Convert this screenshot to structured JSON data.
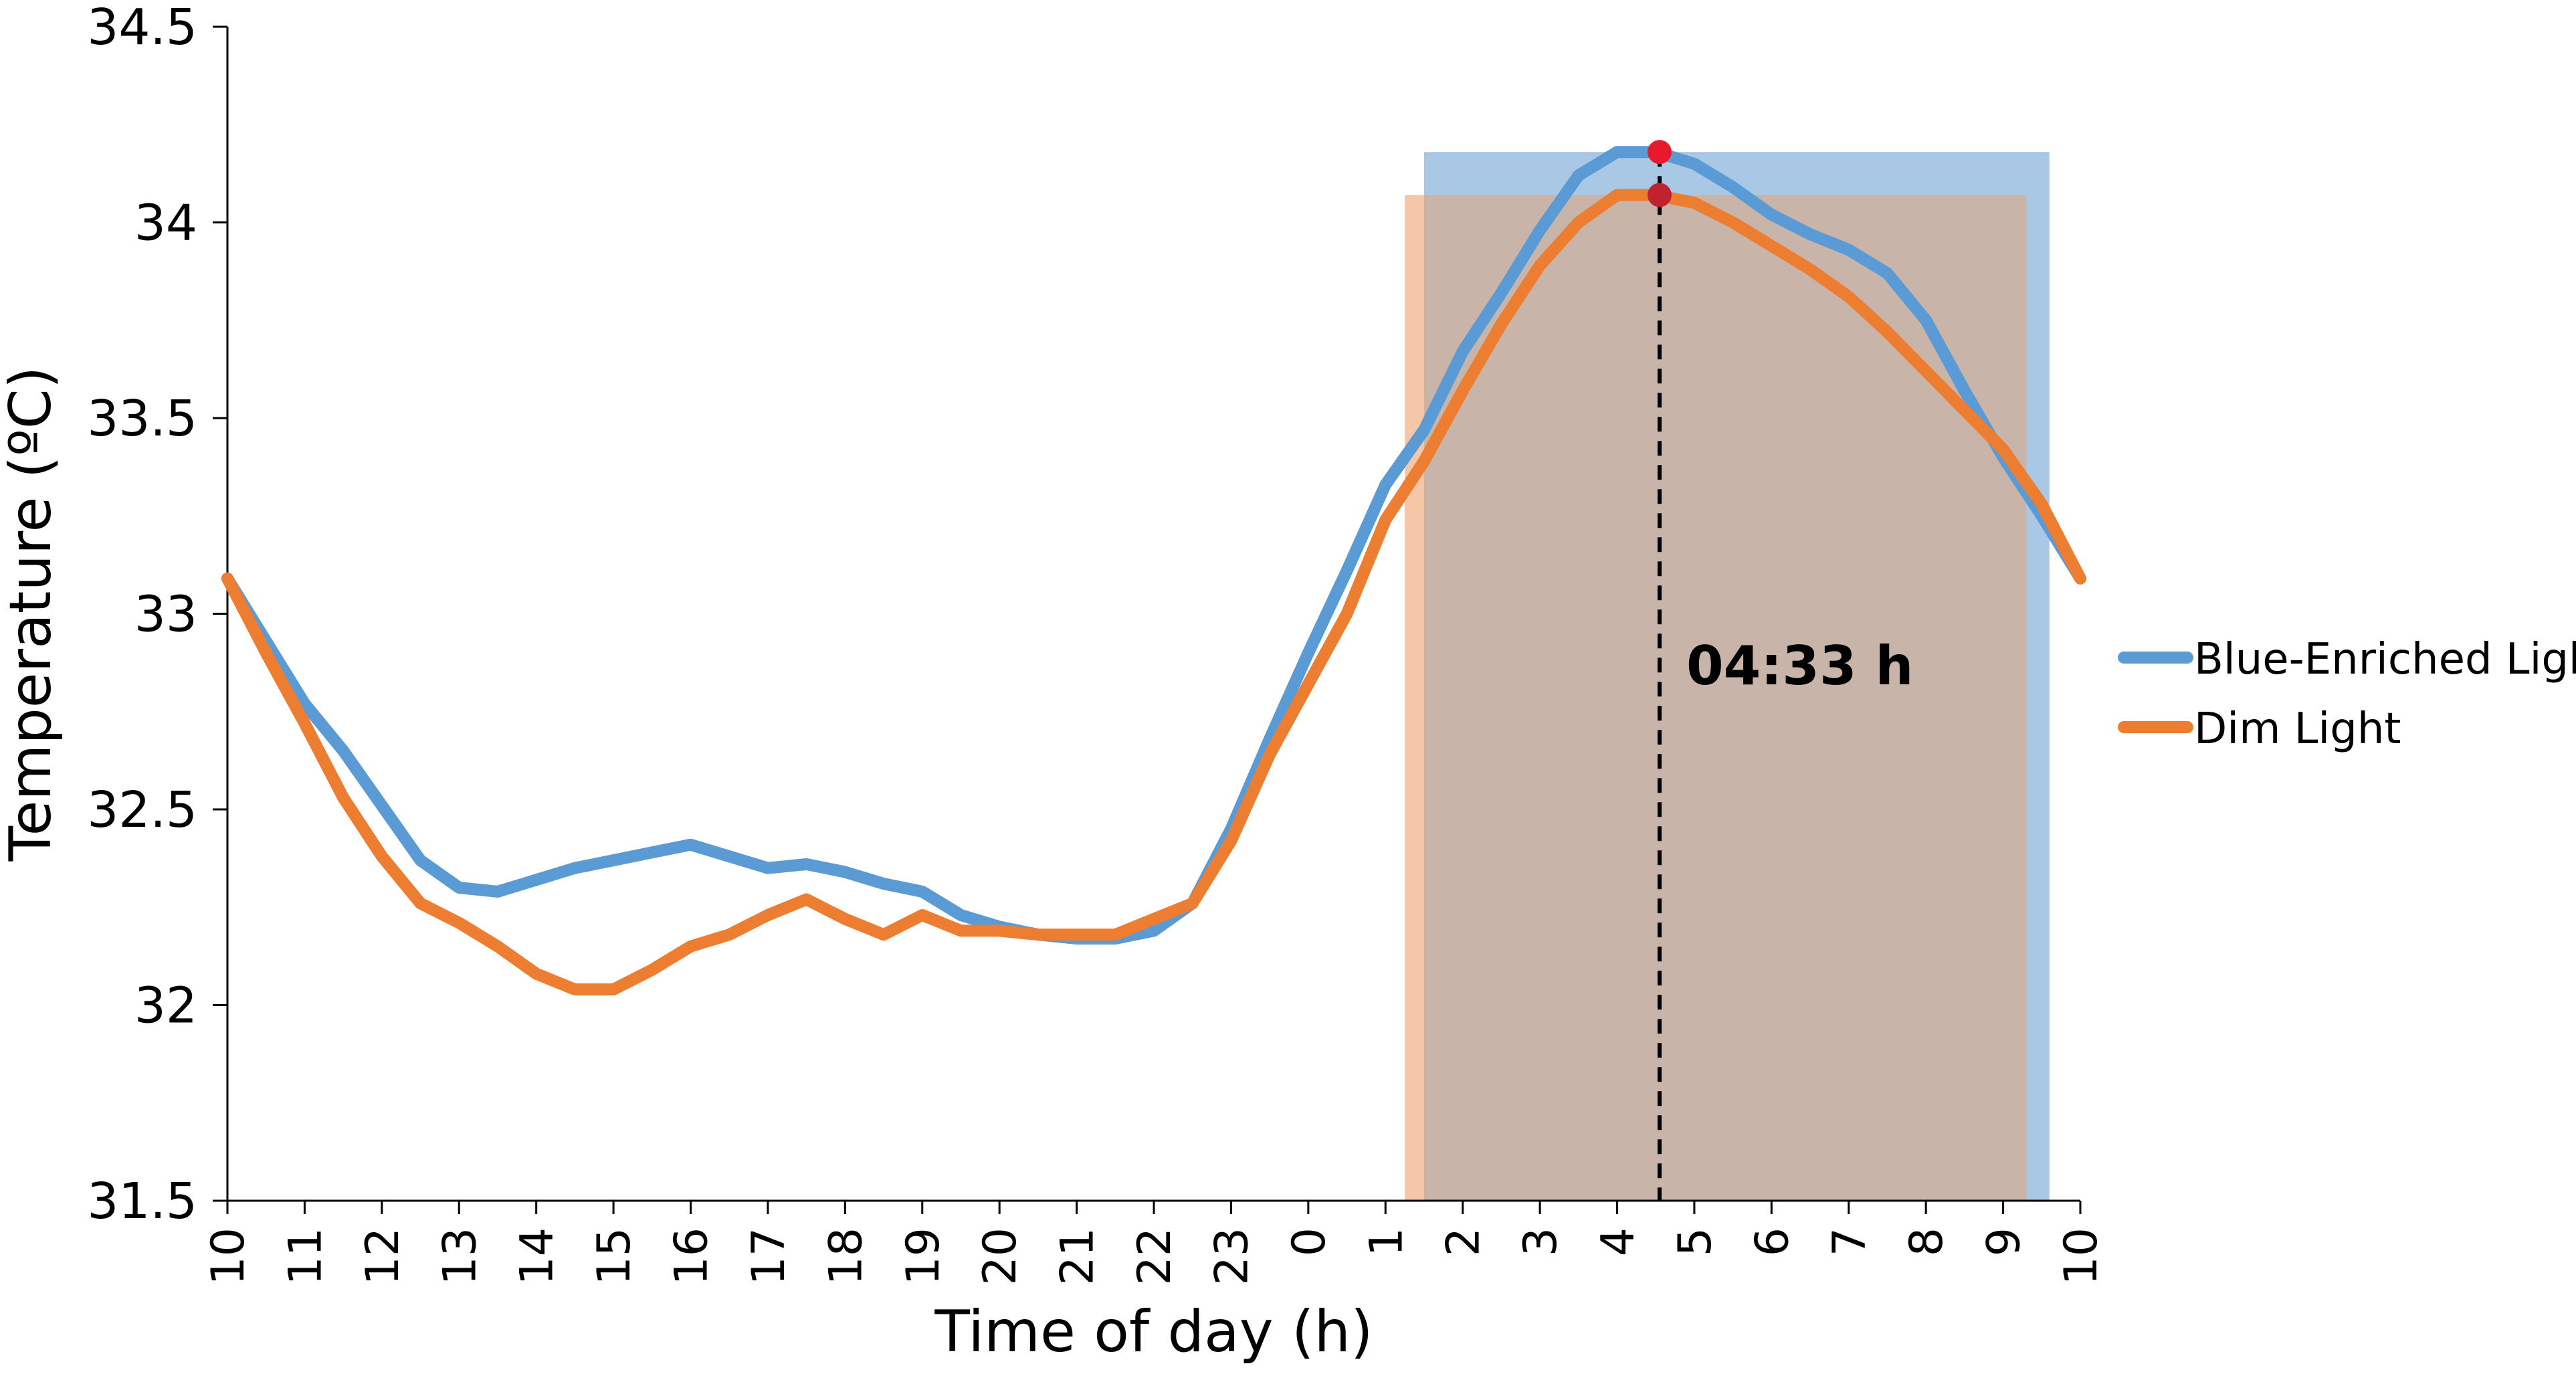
{
  "chart_data": {
    "type": "line",
    "title": "",
    "xlabel": "Time of day (h)",
    "ylabel": "Temperature (ºC)",
    "ylim": [
      31.5,
      34.5
    ],
    "yticks": [
      "31.5",
      "32",
      "32.5",
      "33",
      "33.5",
      "34",
      "34.5"
    ],
    "x_ticks": [
      "10",
      "11",
      "12",
      "13",
      "14",
      "15",
      "16",
      "17",
      "18",
      "19",
      "20",
      "21",
      "22",
      "23",
      "0",
      "1",
      "2",
      "3",
      "4",
      "5",
      "6",
      "7",
      "8",
      "9",
      "10"
    ],
    "x_unit": "hours elapsed from 10:00 (0–24)",
    "grid": false,
    "legend_position": "right",
    "series": [
      {
        "name": "Blue-Enriched Light",
        "color": "#5B9BD5",
        "x": [
          0,
          0.5,
          1,
          1.5,
          2,
          2.5,
          3,
          3.5,
          4,
          4.5,
          5,
          5.5,
          6,
          6.5,
          7,
          7.5,
          8,
          8.5,
          9,
          9.5,
          10,
          10.5,
          11,
          11.5,
          12,
          12.5,
          13,
          13.5,
          14,
          14.5,
          15,
          15.5,
          16,
          16.5,
          17,
          17.5,
          18,
          18.5,
          19,
          19.5,
          20,
          20.5,
          21,
          21.5,
          22,
          22.5,
          23,
          23.5,
          24
        ],
        "y": [
          33.09,
          32.93,
          32.77,
          32.65,
          32.51,
          32.37,
          32.3,
          32.29,
          32.32,
          32.35,
          32.37,
          32.39,
          32.41,
          32.38,
          32.35,
          32.36,
          32.34,
          32.31,
          32.29,
          32.23,
          32.2,
          32.18,
          32.17,
          32.17,
          32.19,
          32.26,
          32.45,
          32.68,
          32.9,
          33.11,
          33.33,
          33.47,
          33.67,
          33.82,
          33.98,
          34.12,
          34.18,
          34.18,
          34.15,
          34.09,
          34.02,
          33.97,
          33.93,
          33.87,
          33.75,
          33.57,
          33.4,
          33.25,
          33.09
        ]
      },
      {
        "name": "Dim Light",
        "color": "#ED7D31",
        "x": [
          0,
          0.5,
          1,
          1.5,
          2,
          2.5,
          3,
          3.5,
          4,
          4.5,
          5,
          5.5,
          6,
          6.5,
          7,
          7.5,
          8,
          8.5,
          9,
          9.5,
          10,
          10.5,
          11,
          11.5,
          12,
          12.5,
          13,
          13.5,
          14,
          14.5,
          15,
          15.5,
          16,
          16.5,
          17,
          17.5,
          18,
          18.5,
          19,
          19.5,
          20,
          20.5,
          21,
          21.5,
          22,
          22.5,
          23,
          23.5,
          24
        ],
        "y": [
          33.09,
          32.9,
          32.72,
          32.53,
          32.38,
          32.26,
          32.21,
          32.15,
          32.08,
          32.04,
          32.04,
          32.09,
          32.15,
          32.18,
          32.23,
          32.27,
          32.22,
          32.18,
          32.23,
          32.19,
          32.19,
          32.18,
          32.18,
          32.18,
          32.22,
          32.26,
          32.42,
          32.64,
          32.82,
          33.0,
          33.24,
          33.39,
          33.57,
          33.74,
          33.89,
          34.0,
          34.07,
          34.07,
          34.05,
          34.0,
          33.94,
          33.88,
          33.81,
          33.72,
          33.62,
          33.52,
          33.42,
          33.28,
          33.09
        ]
      }
    ],
    "shaded_regions": [
      {
        "series": "Blue-Enriched Light",
        "x_start": 15.5,
        "x_end": 23.6,
        "y_top": 34.18,
        "color": "#A9C8E6"
      },
      {
        "series": "Dim Light",
        "x_start": 15.25,
        "x_end": 23.3,
        "y_top": 34.07,
        "color": "#F4C7A9"
      }
    ],
    "overlap_color": "#C9B4A9",
    "peak_markers": [
      {
        "x": 18.55,
        "y": 34.18,
        "color": "#E8192C"
      },
      {
        "x": 18.55,
        "y": 34.07,
        "color": "#C0232F"
      }
    ],
    "peak_line_x": 18.55,
    "annotation": "04:33 h"
  }
}
